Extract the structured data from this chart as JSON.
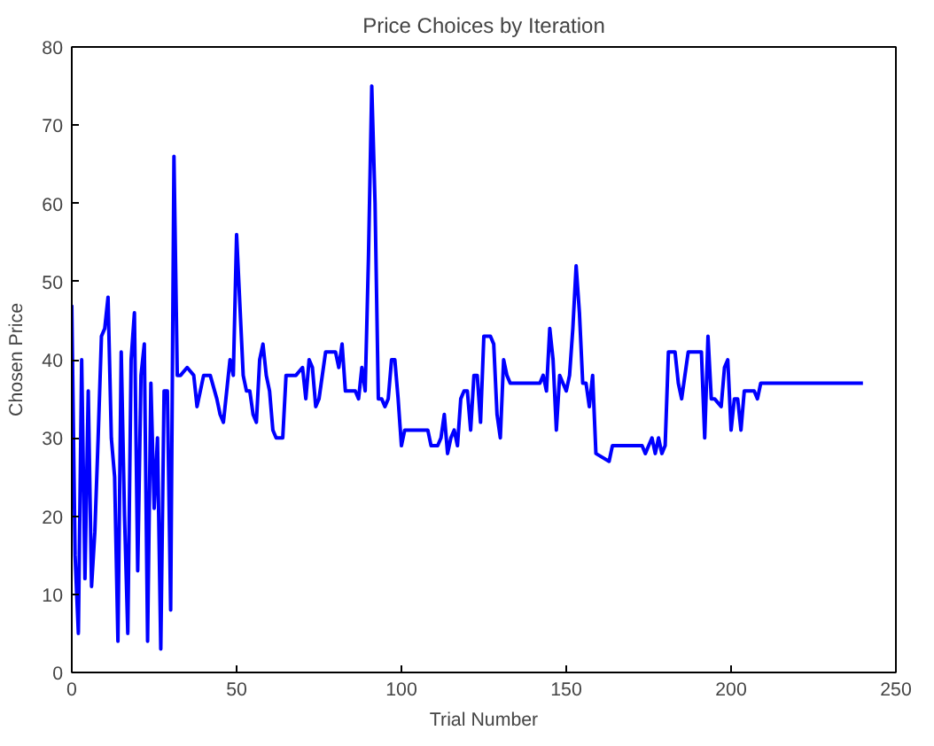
{
  "chart_data": {
    "type": "line",
    "title": "Price Choices by Iteration",
    "xlabel": "Trial Number",
    "ylabel": "Chosen Price",
    "x": [
      0,
      1,
      2,
      3,
      4,
      5,
      6,
      7,
      8,
      9,
      10,
      11,
      12,
      13,
      14,
      15,
      16,
      17,
      18,
      19,
      20,
      21,
      22,
      23,
      24,
      25,
      26,
      27,
      28,
      29,
      30,
      31,
      32,
      33,
      35,
      37,
      38,
      40,
      42,
      44,
      45,
      46,
      47,
      48,
      49,
      50,
      51,
      52,
      53,
      54,
      55,
      56,
      57,
      58,
      59,
      60,
      61,
      62,
      64,
      65,
      68,
      70,
      71,
      72,
      73,
      74,
      75,
      76,
      77,
      80,
      81,
      82,
      83,
      84,
      86,
      87,
      88,
      89,
      90,
      91,
      92,
      93,
      94,
      95,
      96,
      97,
      98,
      99,
      100,
      101,
      105,
      108,
      109,
      111,
      112,
      113,
      114,
      115,
      116,
      117,
      118,
      119,
      120,
      121,
      122,
      123,
      124,
      125,
      127,
      128,
      129,
      130,
      131,
      132,
      133,
      134,
      142,
      143,
      144,
      145,
      146,
      147,
      148,
      149,
      150,
      151,
      152,
      153,
      154,
      155,
      156,
      157,
      158,
      159,
      163,
      164,
      173,
      174,
      175,
      176,
      177,
      178,
      179,
      180,
      181,
      183,
      184,
      185,
      186,
      187,
      191,
      192,
      193,
      194,
      195,
      197,
      198,
      199,
      200,
      201,
      202,
      203,
      204,
      207,
      208,
      209,
      240
    ],
    "series": [
      {
        "color": "#0000ff",
        "values": [
          47,
          15,
          5,
          40,
          12,
          36,
          11,
          18,
          30,
          43,
          44,
          48,
          30,
          25,
          4,
          41,
          20,
          5,
          40,
          46,
          13,
          38,
          42,
          4,
          37,
          21,
          30,
          3,
          36,
          36,
          8,
          66,
          38,
          38,
          39,
          38,
          34,
          38,
          38,
          35,
          33,
          32,
          36,
          40,
          38,
          56,
          47,
          38,
          36,
          36,
          33,
          32,
          40,
          42,
          38,
          36,
          31,
          30,
          30,
          38,
          38,
          39,
          35,
          40,
          39,
          34,
          35,
          38,
          41,
          41,
          39,
          42,
          36,
          36,
          36,
          35,
          39,
          36,
          53,
          75,
          60,
          35,
          35,
          34,
          35,
          40,
          40,
          35,
          29,
          31,
          31,
          31,
          29,
          29,
          30,
          33,
          28,
          30,
          31,
          29,
          35,
          36,
          36,
          31,
          38,
          38,
          32,
          43,
          43,
          42,
          33,
          30,
          40,
          38,
          37,
          37,
          37,
          38,
          36,
          44,
          40,
          31,
          38,
          37,
          36,
          38,
          44,
          52,
          46,
          37,
          37,
          34,
          38,
          28,
          27,
          29,
          29,
          28,
          29,
          30,
          28,
          30,
          28,
          29,
          41,
          41,
          37,
          35,
          38,
          41,
          41,
          30,
          43,
          35,
          35,
          34,
          39,
          40,
          31,
          35,
          35,
          31,
          36,
          36,
          35,
          37,
          37
        ]
      }
    ],
    "xlim": [
      0,
      250
    ],
    "ylim": [
      0,
      80
    ],
    "xticks": [
      0,
      50,
      100,
      150,
      200,
      250
    ],
    "yticks": [
      0,
      10,
      20,
      30,
      40,
      50,
      60,
      70,
      80
    ],
    "grid": false,
    "line_style": "solid",
    "marker": "none"
  }
}
